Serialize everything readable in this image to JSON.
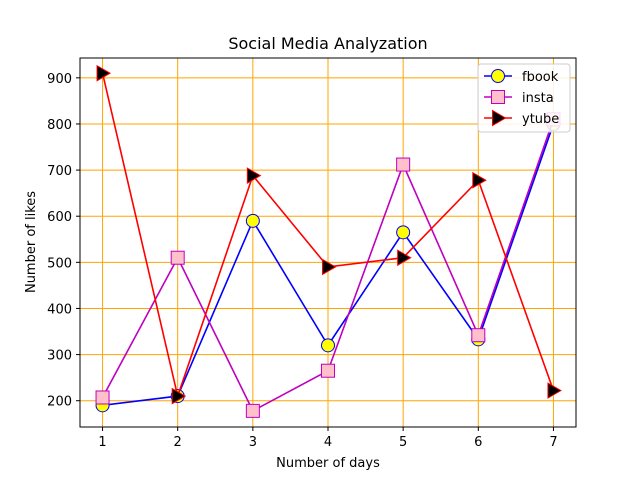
{
  "chart_data": {
    "type": "line",
    "title": "Social Media Analyzation",
    "xlabel": "Number of days",
    "ylabel": "Number of likes",
    "x": [
      1,
      2,
      3,
      4,
      5,
      6,
      7
    ],
    "xlim": [
      0.7,
      7.3
    ],
    "ylim": [
      143,
      943
    ],
    "xticks": [
      1,
      2,
      3,
      4,
      5,
      6,
      7
    ],
    "yticks": [
      200,
      300,
      400,
      500,
      600,
      700,
      800,
      900
    ],
    "grid": true,
    "grid_color": "#ffa500",
    "legend_position": "top-right",
    "series": [
      {
        "name": "fbook",
        "values": [
          190,
          210,
          590,
          320,
          565,
          333,
          800
        ],
        "line_color": "#0000ff",
        "marker": "circle",
        "marker_fill": "#ffff00",
        "marker_edge": "#0000ff"
      },
      {
        "name": "insta",
        "values": [
          207,
          510,
          178,
          265,
          712,
          342,
          810
        ],
        "line_color": "#bf00bf",
        "marker": "square",
        "marker_fill": "#ffc0cb",
        "marker_edge": "#bf00bf"
      },
      {
        "name": "ytube",
        "values": [
          910,
          210,
          688,
          490,
          510,
          678,
          222
        ],
        "line_color": "#ff0000",
        "marker": "triangle-right",
        "marker_fill": "#000000",
        "marker_edge": "#ff0000"
      }
    ]
  }
}
